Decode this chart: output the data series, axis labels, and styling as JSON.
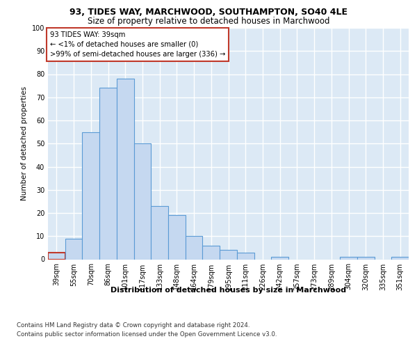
{
  "title1": "93, TIDES WAY, MARCHWOOD, SOUTHAMPTON, SO40 4LE",
  "title2": "Size of property relative to detached houses in Marchwood",
  "xlabel": "Distribution of detached houses by size in Marchwood",
  "ylabel": "Number of detached properties",
  "categories": [
    "39sqm",
    "55sqm",
    "70sqm",
    "86sqm",
    "101sqm",
    "117sqm",
    "133sqm",
    "148sqm",
    "164sqm",
    "179sqm",
    "195sqm",
    "211sqm",
    "226sqm",
    "242sqm",
    "257sqm",
    "273sqm",
    "289sqm",
    "304sqm",
    "320sqm",
    "335sqm",
    "351sqm"
  ],
  "values": [
    3,
    9,
    55,
    74,
    78,
    50,
    23,
    19,
    10,
    6,
    4,
    3,
    0,
    1,
    0,
    0,
    0,
    1,
    1,
    0,
    1
  ],
  "bar_color": "#c5d8f0",
  "bar_edge_color": "#5b9bd5",
  "highlight_index": 0,
  "highlight_bar_edge_color": "#c0392b",
  "annotation_box_text": "93 TIDES WAY: 39sqm\n← <1% of detached houses are smaller (0)\n>99% of semi-detached houses are larger (336) →",
  "annotation_box_color": "#ffffff",
  "annotation_box_edge_color": "#c0392b",
  "footnote1": "Contains HM Land Registry data © Crown copyright and database right 2024.",
  "footnote2": "Contains public sector information licensed under the Open Government Licence v3.0.",
  "ylim": [
    0,
    100
  ],
  "yticks": [
    0,
    10,
    20,
    30,
    40,
    50,
    60,
    70,
    80,
    90,
    100
  ],
  "bg_color": "#dce9f5",
  "grid_color": "#ffffff",
  "fig_bg_color": "#ffffff"
}
